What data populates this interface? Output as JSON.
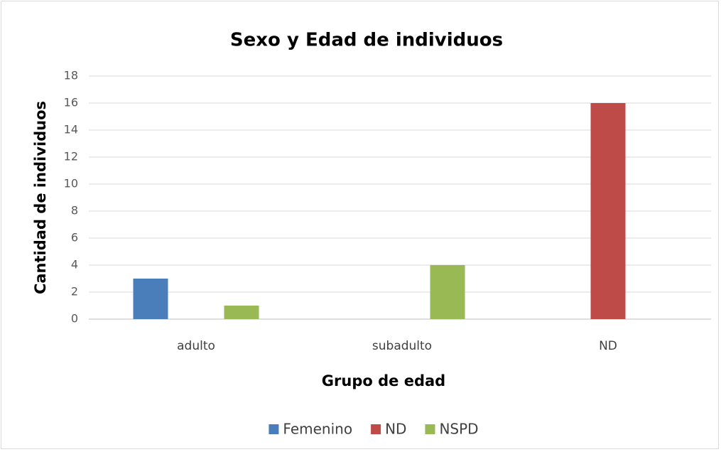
{
  "chart_data": {
    "type": "bar",
    "title": "Sexo y Edad de individuos",
    "x_label": "Grupo de edad",
    "y_label": "Cantidad de individuos",
    "categories": [
      "adulto",
      "subadulto",
      "ND"
    ],
    "series": [
      {
        "name": "Femenino",
        "color": "#4a7ebb",
        "values": [
          3,
          0,
          0
        ]
      },
      {
        "name": "ND",
        "color": "#be4b48",
        "values": [
          0,
          0,
          16
        ]
      },
      {
        "name": "NSPD",
        "color": "#98b954",
        "values": [
          1,
          4,
          0
        ]
      }
    ],
    "ylim": [
      0,
      18
    ],
    "yticks": [
      0,
      2,
      4,
      6,
      8,
      10,
      12,
      14,
      16,
      18
    ],
    "grid": true,
    "legend": "bottom"
  }
}
